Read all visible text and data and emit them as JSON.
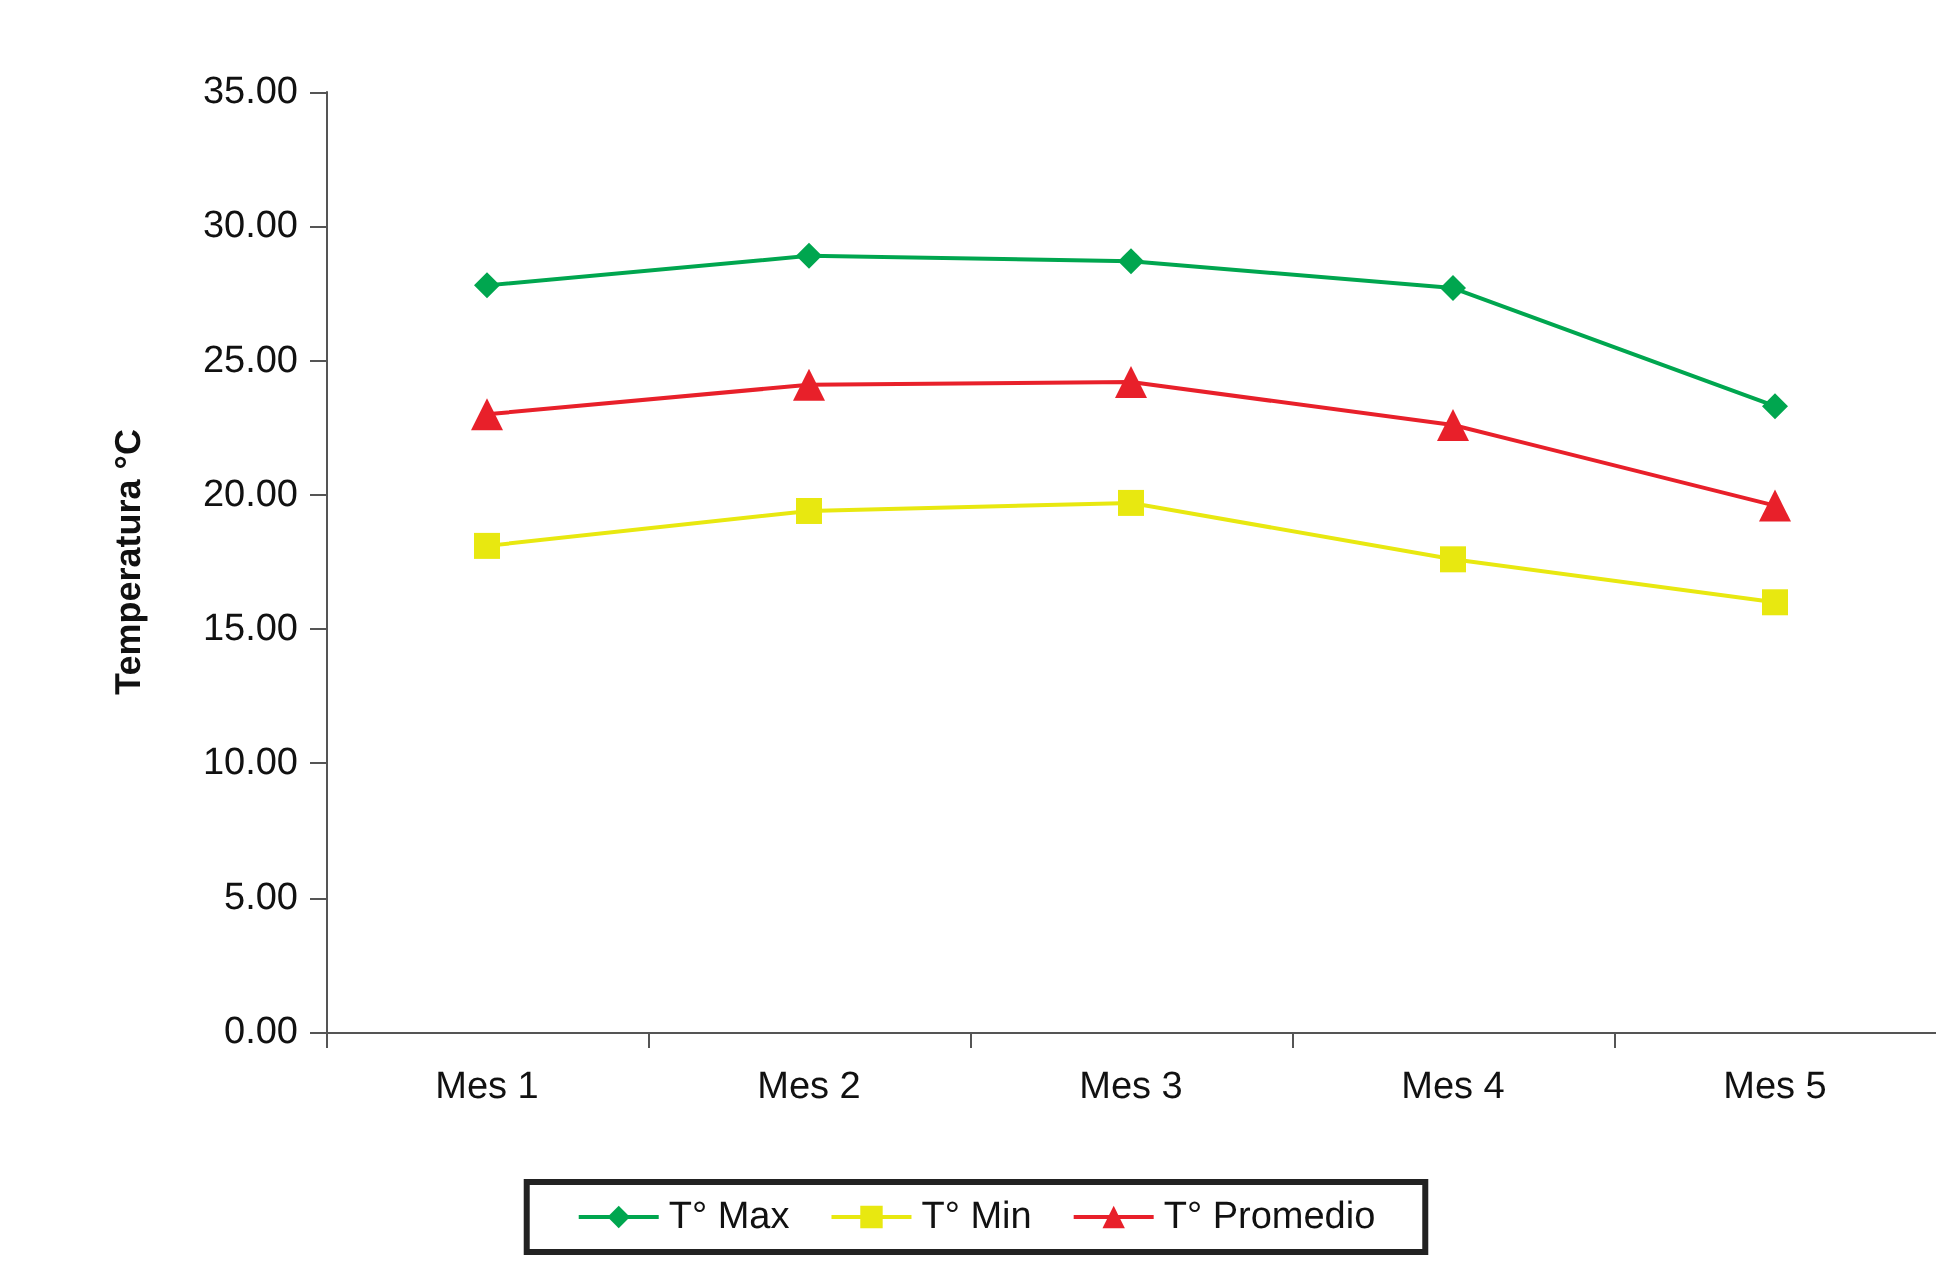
{
  "chart_data": {
    "type": "line",
    "ylabel": "Temperatura °C",
    "categories": [
      "Mes 1",
      "Mes 2",
      "Mes 3",
      "Mes 4",
      "Mes 5"
    ],
    "series": [
      {
        "name": "T° Max",
        "color": "#00a64f",
        "marker": "diamond",
        "values": [
          27.8,
          28.9,
          28.7,
          27.7,
          23.3
        ]
      },
      {
        "name": "T° Min",
        "color": "#e8e810",
        "marker": "square",
        "values": [
          18.1,
          19.4,
          19.7,
          17.6,
          16.0
        ]
      },
      {
        "name": "T° Promedio",
        "color": "#e8202a",
        "marker": "triangle",
        "values": [
          23.0,
          24.1,
          24.2,
          22.6,
          19.6
        ]
      }
    ],
    "ylim": [
      0,
      35
    ],
    "yticks": [
      {
        "value": 0,
        "label": "0.00"
      },
      {
        "value": 5,
        "label": "5.00"
      },
      {
        "value": 10,
        "label": "10.00"
      },
      {
        "value": 15,
        "label": "15.00"
      },
      {
        "value": 20,
        "label": "20.00"
      },
      {
        "value": 25,
        "label": "25.00"
      },
      {
        "value": 30,
        "label": "30.00"
      },
      {
        "value": 35,
        "label": "35.00"
      }
    ],
    "grid": false,
    "legend": "bottom",
    "line_style": "solid"
  }
}
